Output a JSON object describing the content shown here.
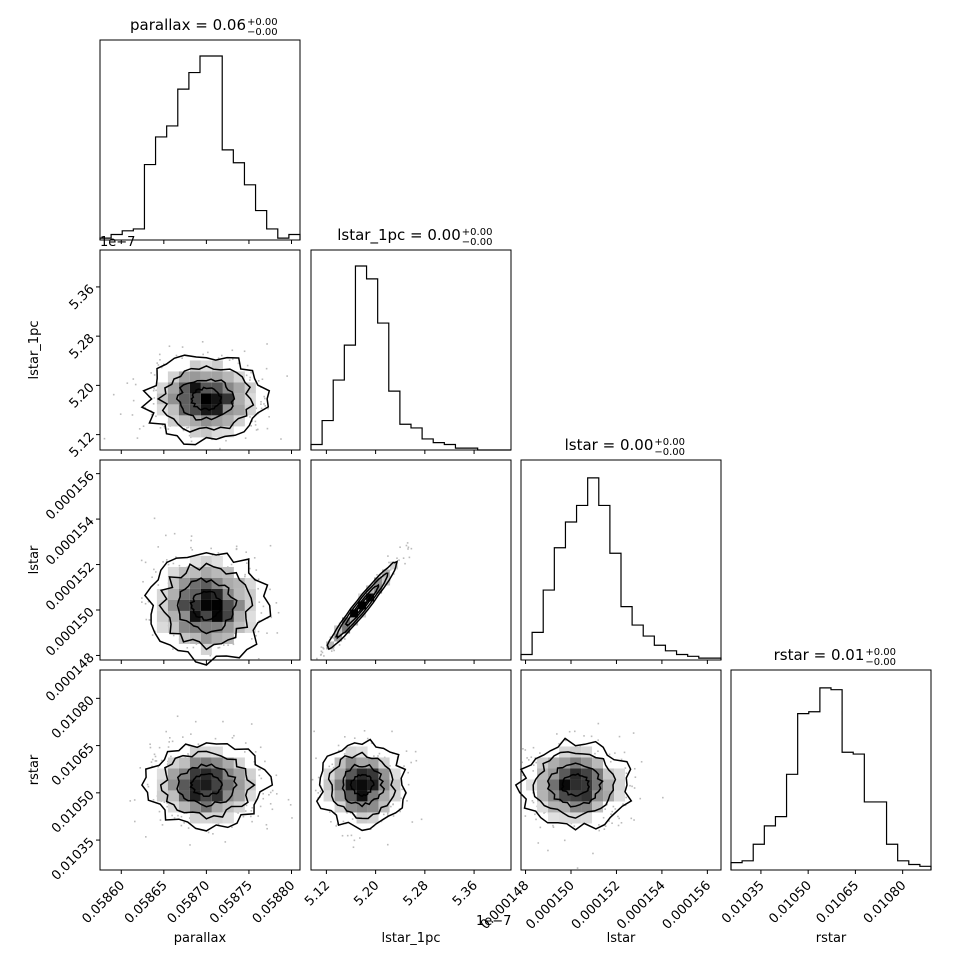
{
  "chart_data": {
    "type": "corner",
    "parameters": [
      "parallax",
      "lstar_1pc",
      "lstar",
      "rstar"
    ],
    "titles": [
      {
        "name": "parallax",
        "value": "0.06",
        "plus": "+0.00",
        "minus": "−0.00"
      },
      {
        "name": "lstar_1pc",
        "value": "0.00",
        "plus": "+0.00",
        "minus": "−0.00"
      },
      {
        "name": "lstar",
        "value": "0.00",
        "plus": "+0.00",
        "minus": "−0.00"
      },
      {
        "name": "rstar",
        "value": "0.01",
        "plus": "+0.00",
        "minus": "−0.00"
      }
    ],
    "axis_labels": {
      "x": [
        "parallax",
        "lstar_1pc",
        "lstar",
        "rstar"
      ],
      "y": [
        "lstar_1pc",
        "lstar",
        "rstar"
      ]
    },
    "offset_texts": {
      "lstar_1pc_y": "1e−7",
      "lstar_1pc_x": "1e−7"
    },
    "ranges": [
      [
        0.058575,
        0.05881
      ],
      [
        5.095,
        5.42
      ],
      [
        0.0001478,
        0.0001566
      ],
      [
        0.010255,
        0.01089
      ]
    ],
    "ticks": [
      [
        0.0586,
        0.05865,
        0.0587,
        0.05875,
        0.0588
      ],
      [
        5.12,
        5.2,
        5.28,
        5.36
      ],
      [
        0.000148,
        0.00015,
        0.000152,
        0.000154,
        0.000156
      ],
      [
        0.01035,
        0.0105,
        0.01065,
        0.0108
      ]
    ],
    "tick_labels": [
      [
        "0.05860",
        "0.05865",
        "0.05870",
        "0.05875",
        "0.05880"
      ],
      [
        "5.12",
        "5.20",
        "5.28",
        "5.36"
      ],
      [
        "0.000148",
        "0.000150",
        "0.000152",
        "0.000154",
        "0.000156"
      ],
      [
        "0.01035",
        "0.01050",
        "0.01065",
        "0.01080"
      ]
    ],
    "histograms": [
      [
        0.01,
        0.03,
        0.05,
        0.06,
        0.41,
        0.56,
        0.62,
        0.82,
        0.91,
        1.0,
        1.0,
        0.49,
        0.42,
        0.3,
        0.16,
        0.06,
        0.01,
        0.03
      ],
      [
        0.03,
        0.16,
        0.38,
        0.57,
        1.0,
        0.93,
        0.69,
        0.32,
        0.14,
        0.12,
        0.06,
        0.04,
        0.03,
        0.01,
        0.01,
        0.0,
        0.0,
        0.0
      ],
      [
        0.03,
        0.15,
        0.38,
        0.61,
        0.75,
        0.84,
        0.99,
        0.84,
        0.58,
        0.29,
        0.19,
        0.13,
        0.08,
        0.05,
        0.03,
        0.02,
        0.01,
        0.01
      ],
      [
        0.04,
        0.05,
        0.14,
        0.24,
        0.29,
        0.52,
        0.85,
        0.86,
        0.99,
        0.98,
        0.64,
        0.63,
        0.37,
        0.37,
        0.14,
        0.05,
        0.03,
        0.02
      ]
    ],
    "correlations": {
      "1_0": 0.0,
      "2_0": -0.05,
      "2_1": 0.98,
      "3_0": 0.0,
      "3_1": -0.02,
      "3_2": -0.02
    },
    "centers": [
      0.0587,
      5.178,
      0.0001502,
      0.010525
    ],
    "spreads": [
      2.85e-05,
      0.0288,
      9.8e-07,
      5.55e-05
    ]
  }
}
